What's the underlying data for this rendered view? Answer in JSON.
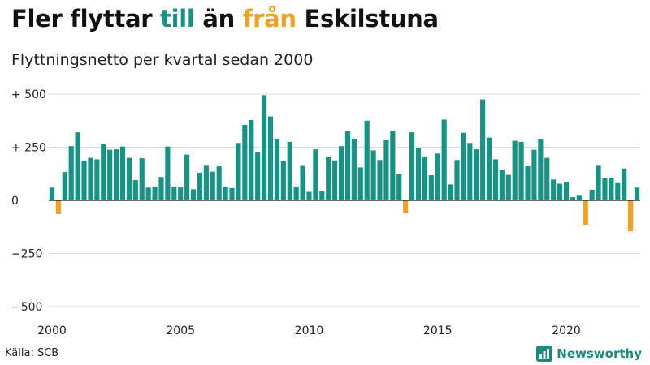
{
  "colors": {
    "up": "#159485",
    "down": "#f2a11f",
    "brand": "#1a8a7e"
  },
  "title_parts": {
    "before": "Fler flyttar ",
    "up_word": "till",
    "middle": " än ",
    "down_word": "från",
    "after": " Eskilstuna"
  },
  "source": "Källa: SCB",
  "brand": {
    "name": "Newsworthy",
    "icon": "bar-chart-icon"
  },
  "chart_data": {
    "type": "bar",
    "title": "Fler flyttar till än från Eskilstuna",
    "subtitle": "Flyttningsnetto per kvartal sedan 2000",
    "xlabel": "",
    "ylabel": "",
    "ylim": [
      -500,
      500
    ],
    "yticks": [
      {
        "value": 500,
        "label": "+ 500"
      },
      {
        "value": 250,
        "label": "+ 250"
      },
      {
        "value": 0,
        "label": "0"
      },
      {
        "value": -250,
        "label": "−250"
      },
      {
        "value": -500,
        "label": "−500"
      }
    ],
    "xticks": [
      "2000",
      "2005",
      "2010",
      "2015",
      "2020"
    ],
    "start_year": 2000,
    "periods_per_year": 4,
    "values": [
      60,
      -65,
      133,
      255,
      320,
      185,
      200,
      193,
      265,
      238,
      240,
      253,
      200,
      95,
      198,
      60,
      65,
      110,
      253,
      65,
      62,
      215,
      52,
      130,
      163,
      135,
      160,
      63,
      58,
      270,
      355,
      378,
      225,
      495,
      395,
      290,
      185,
      275,
      65,
      162,
      40,
      240,
      43,
      205,
      188,
      255,
      325,
      290,
      155,
      375,
      235,
      190,
      285,
      328,
      123,
      -60,
      320,
      245,
      205,
      118,
      220,
      380,
      75,
      190,
      318,
      270,
      240,
      475,
      295,
      193,
      145,
      120,
      280,
      275,
      160,
      238,
      290,
      200,
      98,
      78,
      88,
      15,
      22,
      -115,
      50,
      163,
      105,
      107,
      85,
      150,
      -145,
      60
    ]
  }
}
